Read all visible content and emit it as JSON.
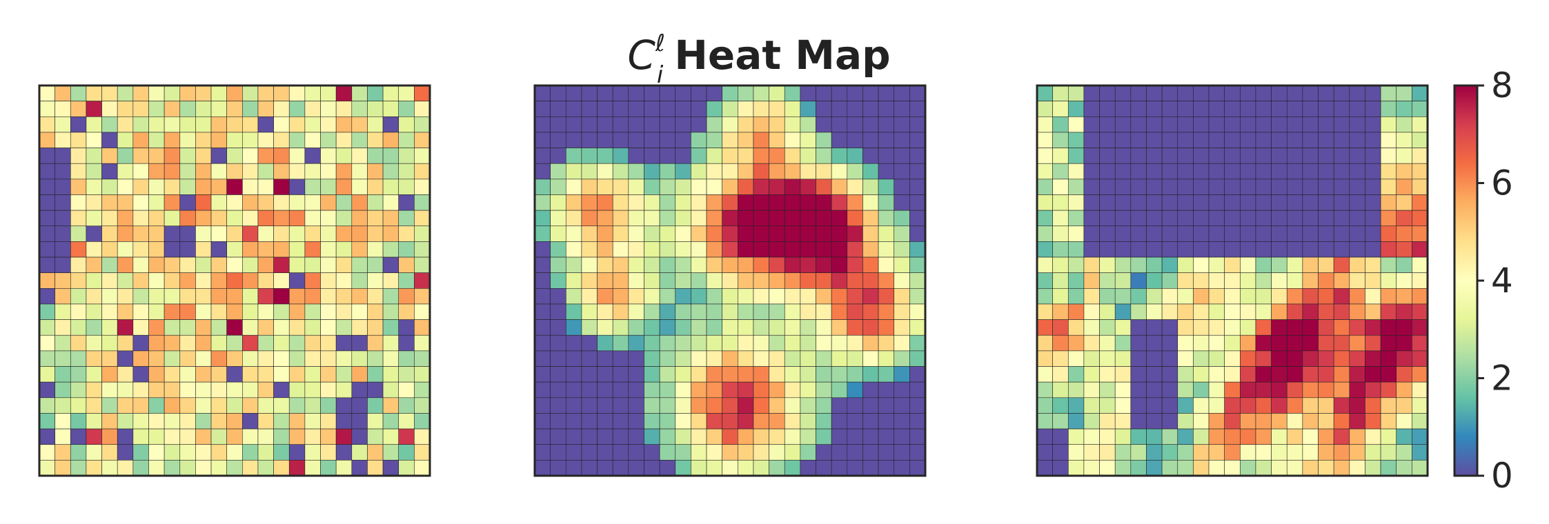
{
  "figure": {
    "title_symbol": "C",
    "title_superscript": "ℓ",
    "title_subscript": "i",
    "title_text": "Heat Map"
  },
  "chart_data": [
    {
      "type": "heatmap",
      "panel": 1,
      "rows": 25,
      "cols": 25,
      "vmin": 0,
      "vmax": 8,
      "colormap": "Spectral_r",
      "grid": true,
      "pattern": "noisy",
      "xticks": [],
      "yticks": []
    },
    {
      "type": "heatmap",
      "panel": 2,
      "rows": 25,
      "cols": 25,
      "vmin": 0,
      "vmax": 8,
      "colormap": "Spectral_r",
      "grid": true,
      "pattern": "blobs",
      "xticks": [],
      "yticks": []
    },
    {
      "type": "heatmap",
      "panel": 3,
      "rows": 25,
      "cols": 25,
      "vmin": 0,
      "vmax": 8,
      "colormap": "Spectral_r",
      "grid": true,
      "pattern": "band",
      "xticks": [],
      "yticks": []
    }
  ],
  "colorbar": {
    "min": 0,
    "max": 8,
    "ticks": [
      0,
      2,
      4,
      6,
      8
    ],
    "tick_labels": [
      "0",
      "2",
      "4",
      "6",
      "8"
    ],
    "position": "right"
  }
}
